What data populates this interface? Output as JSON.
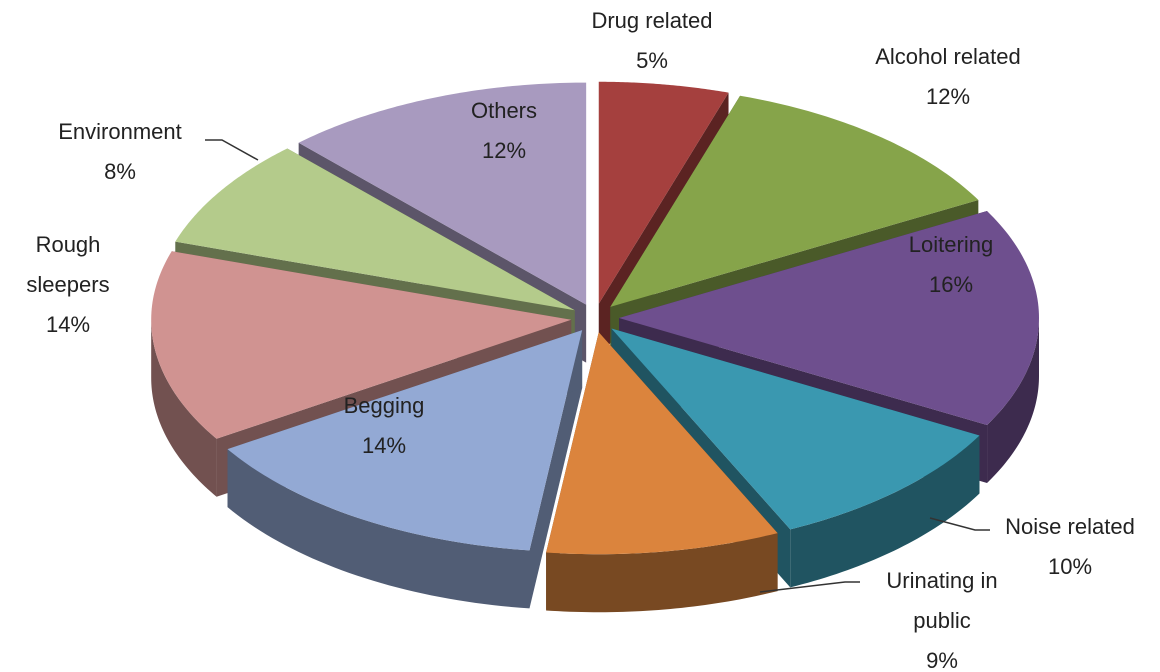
{
  "chart_data": {
    "type": "pie3d",
    "categories": [
      "Drug related",
      "Alcohol related",
      "Loitering",
      "Noise related",
      "Urinating in public",
      "Begging",
      "Rough sleepers",
      "Environment",
      "Others"
    ],
    "values": [
      5,
      12,
      16,
      10,
      9,
      14,
      14,
      8,
      12
    ],
    "value_labels": [
      "5%",
      "12%",
      "16%",
      "10%",
      "9%",
      "14%",
      "14%",
      "8%",
      "12%"
    ],
    "colors": [
      "#a5403e",
      "#86a44a",
      "#6e4f8e",
      "#3a98b0",
      "#db843d",
      "#93a9d4",
      "#d09391",
      "#b4cb8b",
      "#a89abf"
    ]
  }
}
